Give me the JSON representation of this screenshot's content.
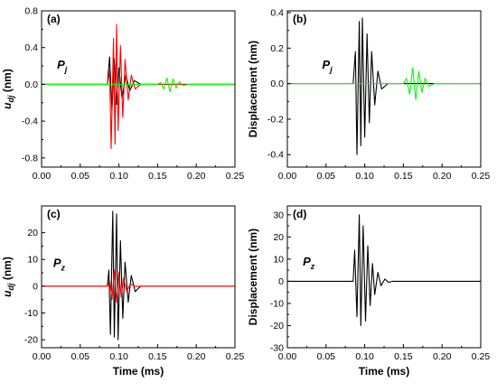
{
  "figure": {
    "panels_count": 4
  },
  "chart_data": [
    {
      "type": "line",
      "panel_label": "(a)",
      "annotation": "Pj",
      "annotation_main": "P",
      "annotation_sub": "j",
      "xlabel": "",
      "ylabel": "u_dj (nm)",
      "ylabel_main": "u",
      "ylabel_sub": "dj",
      "ylabel_unit": " (nm)",
      "xlim": [
        0.0,
        0.25
      ],
      "ylim": [
        -0.9,
        0.8
      ],
      "xticks": [
        "0.00",
        "0.05",
        "0.10",
        "0.15",
        "0.20",
        "0.25"
      ],
      "xtick_values": [
        0.0,
        0.05,
        0.1,
        0.15,
        0.2,
        0.25
      ],
      "yticks": [
        "-0.8",
        "-0.4",
        "0.0",
        "0.4",
        "0.8"
      ],
      "ytick_values": [
        -0.8,
        -0.4,
        0.0,
        0.4,
        0.8
      ],
      "grid": false,
      "series": [
        {
          "color": "#000000",
          "values": [
            [
              0.0,
              0.0
            ],
            [
              0.085,
              0.0
            ],
            [
              0.088,
              0.3
            ],
            [
              0.091,
              -0.29
            ],
            [
              0.094,
              0.28
            ],
            [
              0.097,
              -0.22
            ],
            [
              0.1,
              0.18
            ],
            [
              0.104,
              -0.15
            ],
            [
              0.109,
              0.1
            ],
            [
              0.114,
              -0.07
            ],
            [
              0.12,
              0.04
            ],
            [
              0.128,
              0.0
            ],
            [
              0.25,
              0.0
            ]
          ]
        },
        {
          "color": "#ff0000",
          "values": [
            [
              0.0,
              0.0
            ],
            [
              0.085,
              0.0
            ],
            [
              0.088,
              0.15
            ],
            [
              0.09,
              -0.7
            ],
            [
              0.093,
              0.5
            ],
            [
              0.095,
              -0.65
            ],
            [
              0.097,
              0.65
            ],
            [
              0.099,
              -0.5
            ],
            [
              0.102,
              0.42
            ],
            [
              0.105,
              -0.36
            ],
            [
              0.108,
              0.27
            ],
            [
              0.112,
              -0.17
            ],
            [
              0.116,
              0.1
            ],
            [
              0.121,
              -0.05
            ],
            [
              0.128,
              0.0
            ],
            [
              0.25,
              0.0
            ]
          ]
        },
        {
          "color": "#00ff00",
          "values": [
            [
              0.0,
              0.0
            ],
            [
              0.15,
              0.0
            ],
            [
              0.154,
              0.02
            ],
            [
              0.158,
              -0.05
            ],
            [
              0.162,
              0.07
            ],
            [
              0.166,
              -0.08
            ],
            [
              0.17,
              0.06
            ],
            [
              0.174,
              -0.04
            ],
            [
              0.178,
              0.03
            ],
            [
              0.183,
              -0.015
            ],
            [
              0.19,
              0.0
            ],
            [
              0.25,
              0.0
            ]
          ]
        }
      ]
    },
    {
      "type": "line",
      "panel_label": "(b)",
      "annotation": "Pj",
      "annotation_main": "P",
      "annotation_sub": "j",
      "xlabel": "",
      "ylabel": "Displacement (nm)",
      "xlim": [
        0.0,
        0.25
      ],
      "ylim": [
        -0.47,
        0.41
      ],
      "xticks": [
        "0.00",
        "0.05",
        "0.10",
        "0.15",
        "0.20",
        "0.25"
      ],
      "xtick_values": [
        0.0,
        0.05,
        0.1,
        0.15,
        0.2,
        0.25
      ],
      "yticks": [
        "-0.4",
        "-0.2",
        "0.0",
        "0.2",
        "0.4"
      ],
      "ytick_values": [
        -0.4,
        -0.2,
        0.0,
        0.2,
        0.4
      ],
      "grid": false,
      "series": [
        {
          "color": "#000000",
          "values": [
            [
              0.0,
              0.0
            ],
            [
              0.085,
              0.0
            ],
            [
              0.088,
              0.18
            ],
            [
              0.09,
              -0.4
            ],
            [
              0.093,
              0.35
            ],
            [
              0.095,
              -0.35
            ],
            [
              0.097,
              0.37
            ],
            [
              0.1,
              -0.3
            ],
            [
              0.103,
              0.28
            ],
            [
              0.106,
              -0.22
            ],
            [
              0.109,
              0.18
            ],
            [
              0.113,
              -0.12
            ],
            [
              0.117,
              0.07
            ],
            [
              0.122,
              -0.03
            ],
            [
              0.13,
              0.0
            ],
            [
              0.25,
              0.0
            ]
          ]
        },
        {
          "color": "#00ff00",
          "values": [
            [
              0.0,
              0.0
            ],
            [
              0.15,
              0.0
            ],
            [
              0.154,
              0.03
            ],
            [
              0.158,
              -0.06
            ],
            [
              0.162,
              0.09
            ],
            [
              0.166,
              -0.09
            ],
            [
              0.17,
              0.07
            ],
            [
              0.174,
              -0.05
            ],
            [
              0.178,
              0.03
            ],
            [
              0.183,
              -0.015
            ],
            [
              0.19,
              0.0
            ],
            [
              0.25,
              0.0
            ]
          ]
        }
      ]
    },
    {
      "type": "line",
      "panel_label": "(c)",
      "annotation": "Pz",
      "annotation_main": "P",
      "annotation_sub": "z",
      "xlabel": "Time (ms)",
      "ylabel": "u_dj (nm)",
      "ylabel_main": "u",
      "ylabel_sub": "dj",
      "ylabel_unit": " (nm)",
      "xlim": [
        0.0,
        0.25
      ],
      "ylim": [
        -23,
        30
      ],
      "xticks": [
        "0.00",
        "0.05",
        "0.10",
        "0.15",
        "0.20",
        "0.25"
      ],
      "xtick_values": [
        0.0,
        0.05,
        0.1,
        0.15,
        0.2,
        0.25
      ],
      "yticks": [
        "-20",
        "-10",
        "0",
        "10",
        "20"
      ],
      "ytick_values": [
        -20,
        -10,
        0,
        10,
        20
      ],
      "grid": false,
      "series": [
        {
          "color": "#000000",
          "values": [
            [
              0.0,
              0.0
            ],
            [
              0.085,
              0.0
            ],
            [
              0.087,
              6
            ],
            [
              0.089,
              -18
            ],
            [
              0.092,
              28
            ],
            [
              0.094,
              -19
            ],
            [
              0.097,
              27
            ],
            [
              0.099,
              -20
            ],
            [
              0.102,
              17
            ],
            [
              0.105,
              -12
            ],
            [
              0.108,
              9
            ],
            [
              0.112,
              -6
            ],
            [
              0.116,
              4
            ],
            [
              0.121,
              -2
            ],
            [
              0.128,
              0.0
            ],
            [
              0.25,
              0.0
            ]
          ]
        },
        {
          "color": "#ff0000",
          "values": [
            [
              0.0,
              0.0
            ],
            [
              0.085,
              0.0
            ],
            [
              0.088,
              2
            ],
            [
              0.091,
              -5
            ],
            [
              0.094,
              6
            ],
            [
              0.097,
              -6
            ],
            [
              0.1,
              5
            ],
            [
              0.103,
              -4
            ],
            [
              0.106,
              3
            ],
            [
              0.11,
              -2
            ],
            [
              0.115,
              1
            ],
            [
              0.12,
              0.0
            ],
            [
              0.25,
              0.0
            ]
          ]
        }
      ]
    },
    {
      "type": "line",
      "panel_label": "(d)",
      "annotation": "Pz",
      "annotation_main": "P",
      "annotation_sub": "z",
      "xlabel": "Time (ms)",
      "ylabel": "Displacement (nm)",
      "xlim": [
        0.0,
        0.25
      ],
      "ylim": [
        -30,
        34
      ],
      "xticks": [
        "0.00",
        "0.05",
        "0.10",
        "0.15",
        "0.20",
        "0.25"
      ],
      "xtick_values": [
        0.0,
        0.05,
        0.1,
        0.15,
        0.2,
        0.25
      ],
      "yticks": [
        "-30",
        "-20",
        "-10",
        "0",
        "10",
        "20",
        "30"
      ],
      "ytick_values": [
        -30,
        -20,
        -10,
        0,
        10,
        20,
        30
      ],
      "grid": false,
      "series": [
        {
          "color": "#000000",
          "values": [
            [
              0.0,
              0.0
            ],
            [
              0.085,
              0.0
            ],
            [
              0.087,
              14
            ],
            [
              0.09,
              -16
            ],
            [
              0.093,
              30
            ],
            [
              0.095,
              -20
            ],
            [
              0.098,
              25
            ],
            [
              0.101,
              -18
            ],
            [
              0.104,
              16
            ],
            [
              0.107,
              -11
            ],
            [
              0.11,
              8
            ],
            [
              0.113,
              -6
            ],
            [
              0.117,
              4
            ],
            [
              0.121,
              -2
            ],
            [
              0.126,
              1
            ],
            [
              0.131,
              -0.5
            ],
            [
              0.136,
              0.0
            ],
            [
              0.25,
              0.0
            ]
          ]
        }
      ]
    }
  ]
}
